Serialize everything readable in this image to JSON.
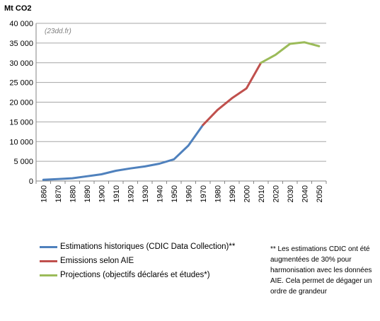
{
  "chart_data": {
    "type": "line",
    "unit_label": "Mt CO2",
    "source_label": "(23dd.fr)",
    "ylim": [
      0,
      40000
    ],
    "y_ticks": [
      "0",
      "5 000",
      "10 000",
      "15 000",
      "20 000",
      "25 000",
      "30 000",
      "35 000",
      "40 000"
    ],
    "y_tick_values": [
      0,
      5000,
      10000,
      15000,
      20000,
      25000,
      30000,
      35000,
      40000
    ],
    "x_categories": [
      "1860",
      "1870",
      "1880",
      "1890",
      "1900",
      "1910",
      "1920",
      "1930",
      "1940",
      "1950",
      "1960",
      "1970",
      "1980",
      "1990",
      "2000",
      "2010",
      "2020",
      "2030",
      "2040",
      "2050"
    ],
    "grid": "horizontal",
    "legend_position": "bottom-left",
    "series": [
      {
        "name": "Estimations historiques (CDIC Data Collection)**",
        "color": "#4f81bd",
        "x": [
          1860,
          1870,
          1880,
          1890,
          1900,
          1910,
          1920,
          1930,
          1940,
          1950,
          1960,
          1970
        ],
        "values": [
          300,
          500,
          700,
          1200,
          1700,
          2600,
          3200,
          3700,
          4400,
          5500,
          9000,
          14200
        ]
      },
      {
        "name": "Emissions selon AIE",
        "color": "#c0504d",
        "x": [
          1970,
          1980,
          1990,
          2000,
          2010
        ],
        "values": [
          14200,
          18000,
          21000,
          23500,
          30000
        ]
      },
      {
        "name": "Projections (objectifs déclarés et études*)",
        "color": "#9bbb59",
        "x": [
          2010,
          2020,
          2030,
          2040,
          2050
        ],
        "values": [
          30000,
          32000,
          34800,
          35200,
          34200
        ]
      }
    ]
  },
  "note": {
    "text": "** Les estimations CDIC ont été augmentées de 30% pour harmonisation avec les données AIE. Cela permet de dégager un ordre de grandeur"
  }
}
